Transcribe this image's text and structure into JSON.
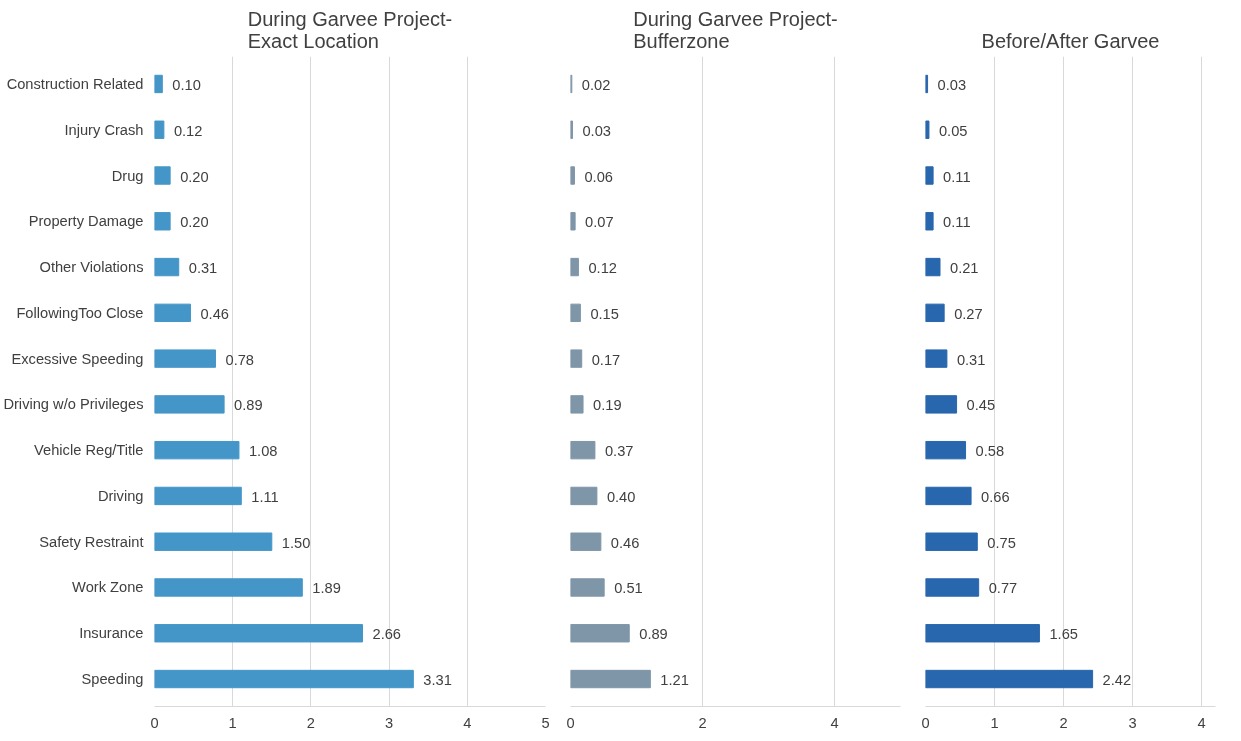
{
  "chart_data": [
    {
      "type": "bar",
      "orientation": "horizontal",
      "title": "During Garvee Project-\nExact Location",
      "categories": [
        "Construction Related",
        "Injury Crash",
        "Drug",
        "Property Damage",
        "Other Violations",
        "FollowingToo Close",
        "Excessive Speeding",
        "Driving w/o Privileges",
        "Vehicle Reg/Title",
        "Driving",
        "Safety Restraint",
        "Work Zone",
        "Insurance",
        "Speeding"
      ],
      "series": [
        {
          "color": "#4596c8",
          "values": [
            0.1,
            0.12,
            0.2,
            0.2,
            0.31,
            0.46,
            0.78,
            0.89,
            1.08,
            1.11,
            1.5,
            1.89,
            2.66,
            3.31
          ],
          "value_labels": [
            "0.10",
            "0.12",
            "0.20",
            "0.20",
            "0.31",
            "0.46",
            "0.78",
            "0.89",
            "1.08",
            "1.11",
            "1.50",
            "1.89",
            "2.66",
            "3.31"
          ]
        }
      ],
      "xlim": [
        0,
        5
      ],
      "xticks": [
        0,
        1,
        2,
        3,
        4,
        5
      ],
      "grid": "x"
    },
    {
      "type": "bar",
      "orientation": "horizontal",
      "title": "During Garvee Project-\nBufferzone",
      "categories": [
        null,
        null,
        null,
        null,
        null,
        null,
        null,
        null,
        null,
        null,
        null,
        null,
        null,
        null
      ],
      "series": [
        {
          "color": "#7f96a8",
          "values": [
            0.02,
            0.03,
            0.06,
            0.07,
            0.12,
            0.15,
            0.17,
            0.19,
            0.37,
            0.4,
            0.46,
            0.51,
            0.89,
            1.21
          ],
          "value_labels": [
            "0.02",
            "0.03",
            "0.06",
            "0.07",
            "0.12",
            "0.15",
            "0.17",
            "0.19",
            "0.37",
            "0.40",
            "0.46",
            "0.51",
            "0.89",
            "1.21"
          ]
        }
      ],
      "xlim": [
        0,
        5
      ],
      "xticks": [
        0,
        2,
        4
      ],
      "grid": "x",
      "tick_labels": "x"
    },
    {
      "type": "bar",
      "orientation": "horizontal",
      "title": "Before/After Garvee",
      "categories": [
        null,
        null,
        null,
        null,
        null,
        null,
        null,
        null,
        null,
        null,
        null,
        null,
        null,
        null
      ],
      "series": [
        {
          "color": "#2866ad",
          "values": [
            0.03,
            0.05,
            0.11,
            0.11,
            0.21,
            0.27,
            0.31,
            0.45,
            0.58,
            0.66,
            0.75,
            0.77,
            1.65,
            2.42
          ],
          "value_labels": [
            "0.03",
            "0.05",
            "0.11",
            "0.11",
            "0.21",
            "0.27",
            "0.31",
            "0.45",
            "0.58",
            "0.66",
            "0.75",
            "0.77",
            "1.65",
            "2.42"
          ]
        }
      ],
      "xlim": [
        0,
        4.2
      ],
      "xticks": [
        0,
        1,
        2,
        3,
        4
      ],
      "grid": "x",
      "tick_labels": "x"
    }
  ]
}
